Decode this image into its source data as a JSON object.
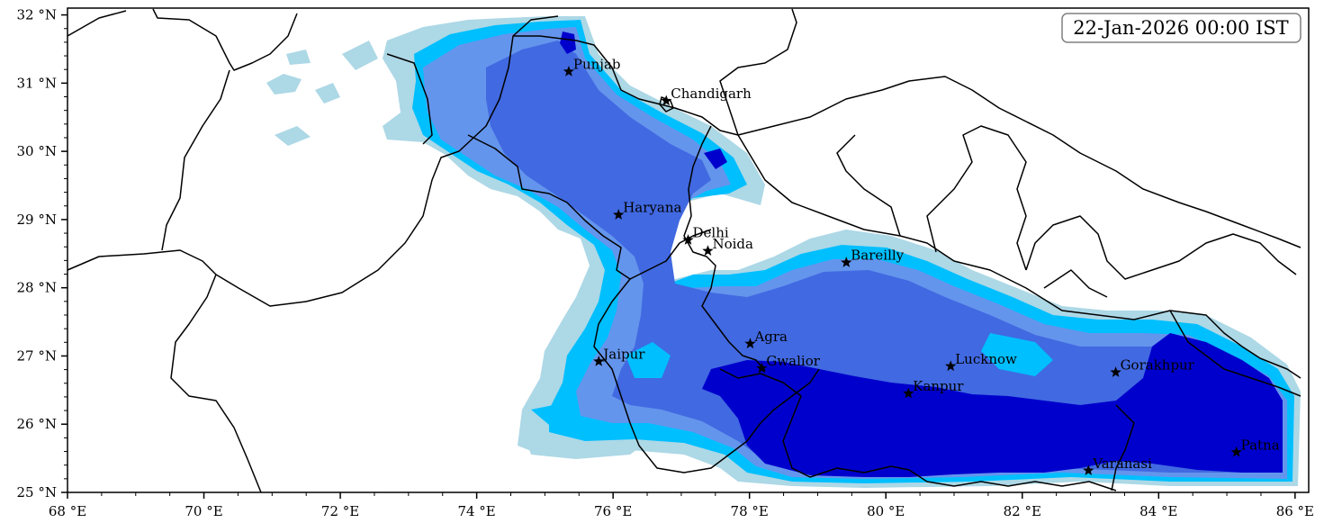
{
  "timestamp": "22-Jan-2026 00:00 IST",
  "axes": {
    "x_range": [
      68,
      86.2
    ],
    "y_range": [
      25,
      32.1
    ],
    "x_ticks": [
      {
        "value": 68,
        "label": "68 °E"
      },
      {
        "value": 70,
        "label": "70 °E"
      },
      {
        "value": 72,
        "label": "72 °E"
      },
      {
        "value": 74,
        "label": "74 °E"
      },
      {
        "value": 76,
        "label": "76 °E"
      },
      {
        "value": 78,
        "label": "78 °E"
      },
      {
        "value": 80,
        "label": "80 °E"
      },
      {
        "value": 82,
        "label": "82 °E"
      },
      {
        "value": 84,
        "label": "84 °E"
      },
      {
        "value": 86,
        "label": "86 °E"
      }
    ],
    "y_ticks": [
      {
        "value": 25,
        "label": "25 °N"
      },
      {
        "value": 26,
        "label": "26 °N"
      },
      {
        "value": 27,
        "label": "27 °N"
      },
      {
        "value": 28,
        "label": "28 °N"
      },
      {
        "value": 29,
        "label": "29 °N"
      },
      {
        "value": 30,
        "label": "30 °N"
      },
      {
        "value": 31,
        "label": "31 °N"
      },
      {
        "value": 32,
        "label": "32 °N"
      }
    ]
  },
  "cities": [
    {
      "name": "Punjab",
      "lon": 75.35,
      "lat": 31.17
    },
    {
      "name": "Chandigarh",
      "lon": 76.78,
      "lat": 30.74
    },
    {
      "name": "Haryana",
      "lon": 76.08,
      "lat": 29.07
    },
    {
      "name": "Delhi",
      "lon": 77.1,
      "lat": 28.7
    },
    {
      "name": "Noida",
      "lon": 77.39,
      "lat": 28.54
    },
    {
      "name": "Bareilly",
      "lon": 79.42,
      "lat": 28.37
    },
    {
      "name": "Agra",
      "lon": 78.01,
      "lat": 27.18
    },
    {
      "name": "Jaipur",
      "lon": 75.79,
      "lat": 26.92
    },
    {
      "name": "Gwalior",
      "lon": 78.18,
      "lat": 26.82
    },
    {
      "name": "Lucknow",
      "lon": 80.95,
      "lat": 26.85
    },
    {
      "name": "Gorakhpur",
      "lon": 83.37,
      "lat": 26.76
    },
    {
      "name": "Kanpur",
      "lon": 80.33,
      "lat": 26.45
    },
    {
      "name": "Varanasi",
      "lon": 82.97,
      "lat": 25.32
    },
    {
      "name": "Patna",
      "lon": 85.14,
      "lat": 25.59
    }
  ],
  "colors": {
    "level1": "#add8e6",
    "level2": "#00bfff",
    "level3": "#6495ed",
    "level4": "#4169e1",
    "level5": "#0000cd",
    "border": "#000000"
  }
}
